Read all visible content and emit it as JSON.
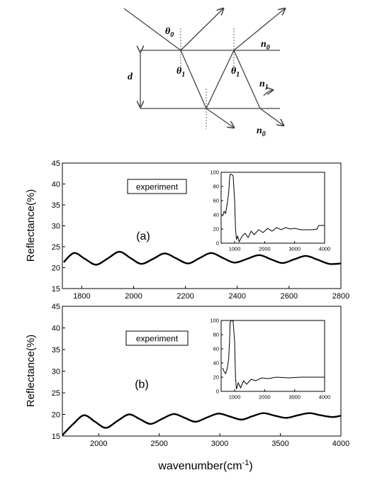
{
  "diagram": {
    "labels": [
      {
        "symbol": "θ",
        "sub": "0"
      },
      {
        "symbol": "θ",
        "sub": "1"
      },
      {
        "symbol": "θ",
        "sub": "1"
      },
      {
        "symbol": "n",
        "sub": "0"
      },
      {
        "symbol": "n",
        "sub": "1"
      },
      {
        "symbol": "n",
        "sub": "0"
      }
    ],
    "d": "d"
  },
  "chart_data": [
    {
      "type": "line",
      "ylabel": "Reflectance(%)",
      "annotations": [
        "experiment",
        "(a)"
      ],
      "xlim": [
        1725,
        2800
      ],
      "ylim": [
        15,
        45
      ],
      "xticks": [
        1800,
        2000,
        2200,
        2400,
        2600,
        2800
      ],
      "yticks": [
        15,
        20,
        25,
        30,
        35,
        40,
        45
      ],
      "color": "#000000",
      "x": [
        1730,
        1770,
        1812,
        1855,
        1900,
        1945,
        1988,
        2030,
        2075,
        2120,
        2165,
        2210,
        2255,
        2300,
        2345,
        2390,
        2438,
        2485,
        2530,
        2575,
        2620,
        2665,
        2710,
        2755,
        2800
      ],
      "values": [
        21.3,
        23.5,
        22.1,
        20.7,
        22.2,
        23.8,
        22.3,
        20.9,
        22.1,
        23.4,
        22.2,
        21.0,
        22.3,
        23.5,
        22.3,
        21.2,
        22.1,
        23.0,
        22.0,
        21.1,
        22.0,
        22.8,
        21.9,
        20.9,
        21.0
      ]
    },
    {
      "type": "line",
      "ylabel": "Reflectance(%)",
      "annotations": [
        "experiment",
        "(b)"
      ],
      "xlabel": "wavenumber(cm",
      "xlabel_sup": "-1",
      "xlabel_end": ")",
      "xlim": [
        1700,
        4000
      ],
      "ylim": [
        15,
        45
      ],
      "xticks": [
        2000,
        2500,
        3000,
        3500,
        4000
      ],
      "yticks": [
        15,
        20,
        25,
        30,
        35,
        40,
        45
      ],
      "color": "#000000",
      "x": [
        1700,
        1790,
        1880,
        1970,
        2060,
        2155,
        2250,
        2340,
        2430,
        2525,
        2620,
        2710,
        2800,
        2895,
        2990,
        3085,
        3180,
        3270,
        3360,
        3455,
        3550,
        3645,
        3740,
        3835,
        3930,
        4000
      ],
      "values": [
        15.2,
        17.8,
        19.8,
        18.3,
        16.9,
        18.5,
        20.0,
        18.9,
        17.8,
        19.0,
        20.1,
        19.2,
        18.3,
        19.3,
        20.2,
        19.5,
        18.8,
        19.6,
        20.3,
        19.7,
        19.2,
        19.8,
        20.3,
        19.8,
        19.4,
        19.7
      ]
    },
    {
      "type": "inset",
      "xlim": [
        550,
        4000
      ],
      "ylim": [
        0,
        100
      ],
      "xticks": [
        1000,
        2000,
        3000,
        4000
      ],
      "yticks": [
        0,
        20,
        40,
        60,
        80,
        100
      ],
      "color": "#000000",
      "x": [
        600,
        650,
        700,
        750,
        800,
        830,
        850,
        900,
        950,
        1000,
        1030,
        1060,
        1100,
        1150,
        1250,
        1350,
        1450,
        1550,
        1650,
        1800,
        1950,
        2100,
        2250,
        2400,
        2550,
        2700,
        2850,
        3000,
        3200,
        3400,
        3600,
        3750,
        3800,
        4000
      ],
      "values": [
        38,
        45,
        42,
        55,
        70,
        90,
        97,
        97,
        95,
        60,
        20,
        5,
        10,
        2,
        10,
        14,
        8,
        17,
        12,
        19,
        15,
        21,
        17,
        22,
        19,
        22,
        20,
        21,
        19,
        19,
        19,
        20,
        25,
        25
      ]
    },
    {
      "type": "inset",
      "xlim": [
        550,
        4000
      ],
      "ylim": [
        0,
        100
      ],
      "xticks": [
        1000,
        2000,
        3000,
        4000
      ],
      "yticks": [
        0,
        20,
        40,
        60,
        80,
        100
      ],
      "color": "#000000",
      "x": [
        600,
        650,
        700,
        750,
        800,
        830,
        850,
        900,
        950,
        1000,
        1030,
        1060,
        1120,
        1200,
        1300,
        1400,
        1550,
        1700,
        1900,
        2100,
        2400,
        2800,
        3200,
        3600,
        4000
      ],
      "values": [
        33,
        28,
        25,
        32,
        45,
        70,
        98,
        100,
        99,
        70,
        20,
        3,
        12,
        5,
        15,
        10,
        17,
        15,
        19,
        18,
        20,
        19,
        20,
        20,
        20
      ]
    }
  ]
}
